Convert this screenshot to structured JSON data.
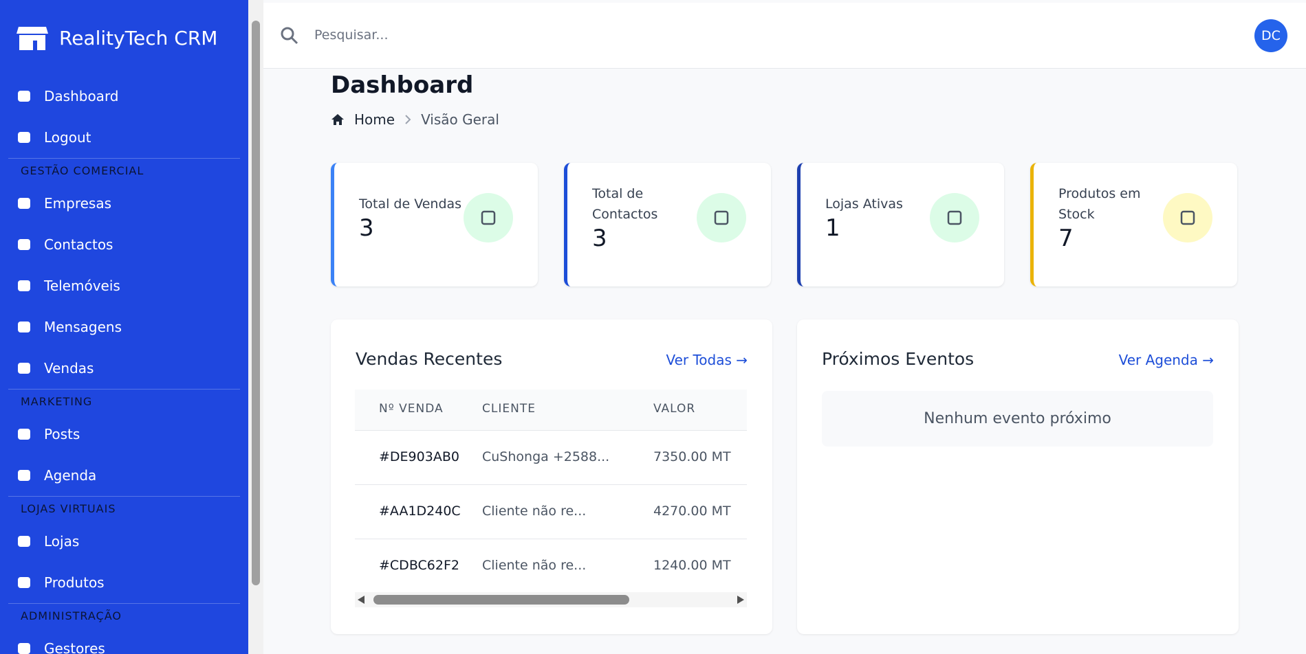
{
  "sidebar": {
    "brand": "RealityTech CRM",
    "sections": [
      {
        "items": [
          "Dashboard",
          "Logout"
        ]
      },
      {
        "title": "GESTÃO COMERCIAL",
        "items": [
          "Empresas",
          "Contactos",
          "Telemóveis",
          "Mensagens",
          "Vendas"
        ]
      },
      {
        "title": "MARKETING",
        "items": [
          "Posts",
          "Agenda"
        ]
      },
      {
        "title": "LOJAS VIRTUAIS",
        "items": [
          "Lojas",
          "Produtos"
        ]
      },
      {
        "title": "ADMINISTRAÇÃO",
        "items": [
          "Gestores"
        ]
      }
    ]
  },
  "topbar": {
    "search_placeholder": "Pesquisar...",
    "avatar": "DC"
  },
  "page": {
    "title": "Dashboard",
    "breadcrumb": [
      "Home",
      "Visão Geral"
    ]
  },
  "stats": [
    {
      "label": "Total de Vendas",
      "value": 3
    },
    {
      "label": "Total de Contactos",
      "value": 3
    },
    {
      "label": "Lojas Ativas",
      "value": 1
    },
    {
      "label": "Produtos em Stock",
      "value": 7
    }
  ],
  "recent_sales": {
    "title": "Vendas Recentes",
    "link": "Ver Todas →",
    "columns": [
      "Nº VENDA",
      "CLIENTE",
      "VALOR"
    ],
    "rows": [
      [
        "#DE903AB0",
        "CuShonga +2588...",
        "7350.00 MT"
      ],
      [
        "#AA1D240C",
        "Cliente não re...",
        "4270.00 MT"
      ],
      [
        "#CDBC62F2",
        "Cliente não re...",
        "1240.00 MT"
      ]
    ]
  },
  "events": {
    "title": "Próximos Eventos",
    "link": "Ver Agenda →",
    "empty": "Nenhum evento próximo"
  }
}
